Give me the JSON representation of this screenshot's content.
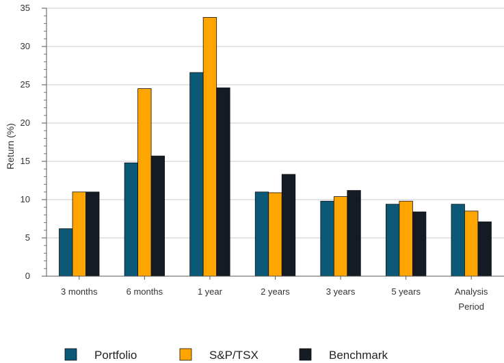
{
  "chart_data": {
    "type": "bar",
    "ylabel": "Return (%)",
    "ylim": [
      0,
      35
    ],
    "yticks": [
      0,
      5,
      10,
      15,
      20,
      25,
      30,
      35
    ],
    "grid": true,
    "legend_position": "bottom",
    "categories": [
      [
        "3 months"
      ],
      [
        "6 months"
      ],
      [
        "1 year"
      ],
      [
        "2 years"
      ],
      [
        "3 years"
      ],
      [
        "5 years"
      ],
      [
        "Analysis",
        "Period"
      ]
    ],
    "series": [
      {
        "name": "Portfolio",
        "color": "#0b5877",
        "values": [
          6.2,
          14.8,
          26.6,
          11.0,
          9.8,
          9.4,
          9.4
        ]
      },
      {
        "name": "S&P/TSX",
        "color": "#ffa500",
        "values": [
          11.0,
          24.5,
          33.8,
          10.9,
          10.4,
          9.8,
          8.5
        ]
      },
      {
        "name": "Benchmark",
        "color": "#141b24",
        "values": [
          11.0,
          15.7,
          24.6,
          13.3,
          11.2,
          8.4,
          7.1
        ]
      }
    ]
  }
}
